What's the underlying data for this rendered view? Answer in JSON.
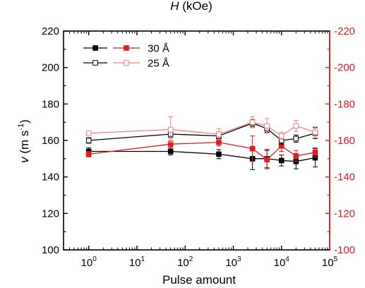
{
  "chart_data": {
    "type": "line",
    "title": "",
    "top_label": {
      "italic": "H",
      "rest": " (kOe)"
    },
    "xlabel": "Pulse amount",
    "ylabel": {
      "italic": "v",
      "rest": " (m s",
      "sup": "-1",
      "close": ")"
    },
    "x_scale": "log",
    "xlim": [
      0.3,
      100000
    ],
    "x_ticks": [
      {
        "base": "10",
        "exp": "0",
        "value": 1
      },
      {
        "base": "10",
        "exp": "1",
        "value": 10
      },
      {
        "base": "10",
        "exp": "2",
        "value": 100
      },
      {
        "base": "10",
        "exp": "3",
        "value": 1000
      },
      {
        "base": "10",
        "exp": "4",
        "value": 10000
      },
      {
        "base": "10",
        "exp": "5",
        "value": 100000
      }
    ],
    "ylim": [
      100,
      220
    ],
    "y_ticks": [
      "100",
      "120",
      "140",
      "160",
      "180",
      "200",
      "220"
    ],
    "y_tick_values": [
      100,
      120,
      140,
      160,
      180,
      200,
      220
    ],
    "y_right_ticks": [
      "-100",
      "-120",
      "-140",
      "-160",
      "-180",
      "-200",
      "-220"
    ],
    "right_axis_color": "#e41a1c",
    "grid": false,
    "legend_placement": "top-left",
    "legend_rows": [
      {
        "label": "30 Å",
        "filled": true
      },
      {
        "label": "25 Å",
        "filled": false
      }
    ],
    "series": [
      {
        "name": "30 Å",
        "axis": "left",
        "color": "#000000",
        "filled": true,
        "x": [
          1,
          50,
          500,
          2500,
          5000,
          10000,
          20000,
          50000
        ],
        "y": [
          154,
          154,
          152.5,
          150,
          150,
          149,
          148.5,
          150.5
        ],
        "err": [
          2,
          2,
          2.5,
          6,
          5,
          3,
          4,
          5
        ]
      },
      {
        "name": "30 Å",
        "axis": "right",
        "color": "#e41a1c",
        "filled": true,
        "x": [
          1,
          50,
          500,
          2500,
          5000,
          10000,
          20000,
          50000
        ],
        "y": [
          152.5,
          158,
          159,
          155.5,
          149.5,
          157,
          151.5,
          153.5
        ],
        "err": [
          1.5,
          2,
          2,
          7,
          5,
          3,
          3,
          2.5
        ]
      },
      {
        "name": "25 Å",
        "axis": "left",
        "color": "#000000",
        "filled": false,
        "x": [
          1,
          50,
          500,
          2500,
          5000,
          10000,
          20000,
          50000
        ],
        "y": [
          160,
          163.5,
          162.5,
          169.5,
          166.5,
          160,
          161,
          164
        ],
        "err": [
          1.5,
          2,
          1.5,
          2,
          2,
          2,
          2,
          3
        ]
      },
      {
        "name": "25 Å",
        "axis": "right",
        "color": "#f08080",
        "filled": false,
        "x": [
          1,
          50,
          500,
          2500,
          5000,
          10000,
          20000,
          50000
        ],
        "y": [
          164,
          166,
          163.5,
          170,
          168,
          162.5,
          168,
          164.5
        ],
        "err": [
          1,
          7,
          3,
          3,
          4,
          2,
          3,
          3
        ]
      }
    ]
  }
}
